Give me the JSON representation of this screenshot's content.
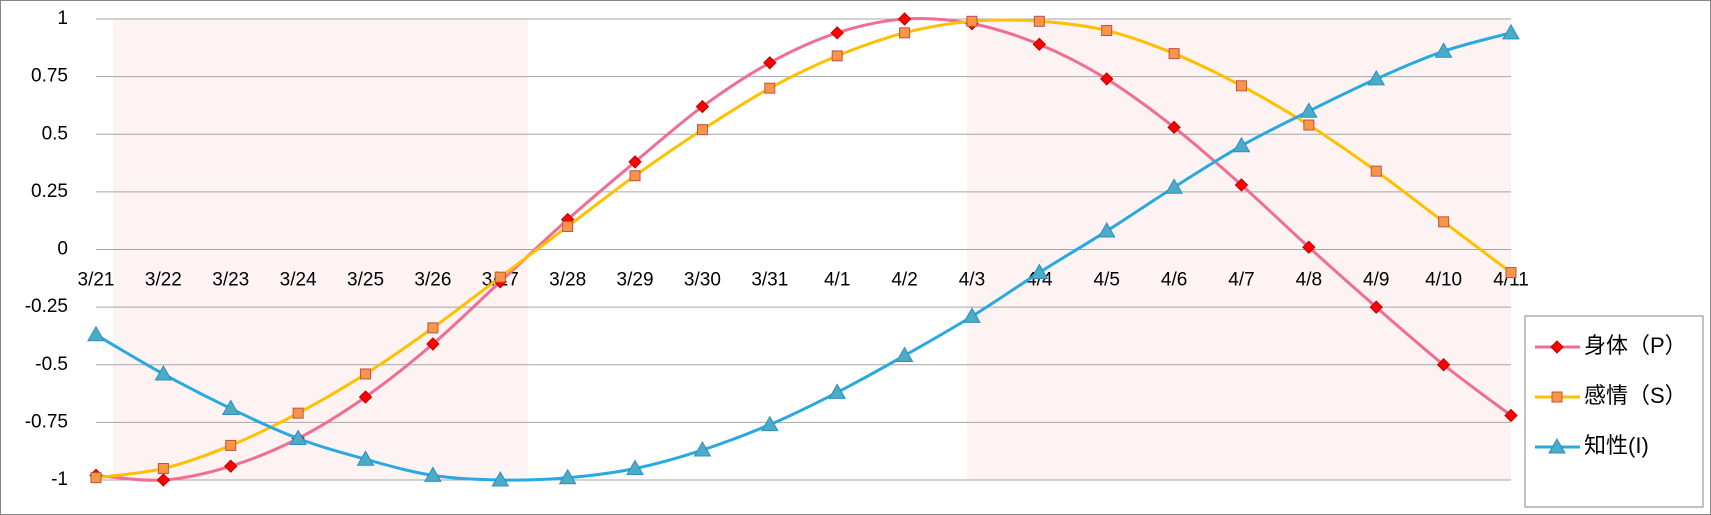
{
  "chart_data": {
    "type": "line",
    "categories": [
      "3/21",
      "3/22",
      "3/23",
      "3/24",
      "3/25",
      "3/26",
      "3/27",
      "3/28",
      "3/29",
      "3/30",
      "3/31",
      "4/1",
      "4/2",
      "4/3",
      "4/4",
      "4/5",
      "4/6",
      "4/7",
      "4/8",
      "4/9",
      "4/10",
      "4/11"
    ],
    "series": [
      {
        "name": "身体（P）",
        "color": "#f06e96",
        "marker": "diamond",
        "marker_color": "#ff0000",
        "values": [
          -0.98,
          -1.0,
          -0.94,
          -0.82,
          -0.64,
          -0.41,
          -0.14,
          0.13,
          0.38,
          0.62,
          0.81,
          0.94,
          1.0,
          0.98,
          0.89,
          0.74,
          0.53,
          0.28,
          0.01,
          -0.25,
          -0.5,
          -0.72
        ]
      },
      {
        "name": "感情（S）",
        "color": "#ffc000",
        "marker": "square",
        "marker_color": "#f79646",
        "values": [
          -0.99,
          -0.95,
          -0.85,
          -0.71,
          -0.54,
          -0.34,
          -0.12,
          0.1,
          0.32,
          0.52,
          0.7,
          0.84,
          0.94,
          0.99,
          0.99,
          0.95,
          0.85,
          0.71,
          0.54,
          0.34,
          0.12,
          -0.1
        ]
      },
      {
        "name": "知性(I)",
        "color": "#2aa9e0",
        "marker": "triangle",
        "marker_color": "#4bacc6",
        "values": [
          -0.37,
          -0.54,
          -0.69,
          -0.82,
          -0.91,
          -0.98,
          -1.0,
          -0.99,
          -0.95,
          -0.87,
          -0.76,
          -0.62,
          -0.46,
          -0.29,
          -0.1,
          0.08,
          0.27,
          0.45,
          0.6,
          0.74,
          0.86,
          0.94
        ]
      }
    ],
    "ylim": [
      -1,
      1
    ],
    "yticks": [
      1,
      0.75,
      0.5,
      0.25,
      0,
      -0.25,
      -0.5,
      -0.75,
      -1
    ],
    "grid": true,
    "legend": "right"
  }
}
